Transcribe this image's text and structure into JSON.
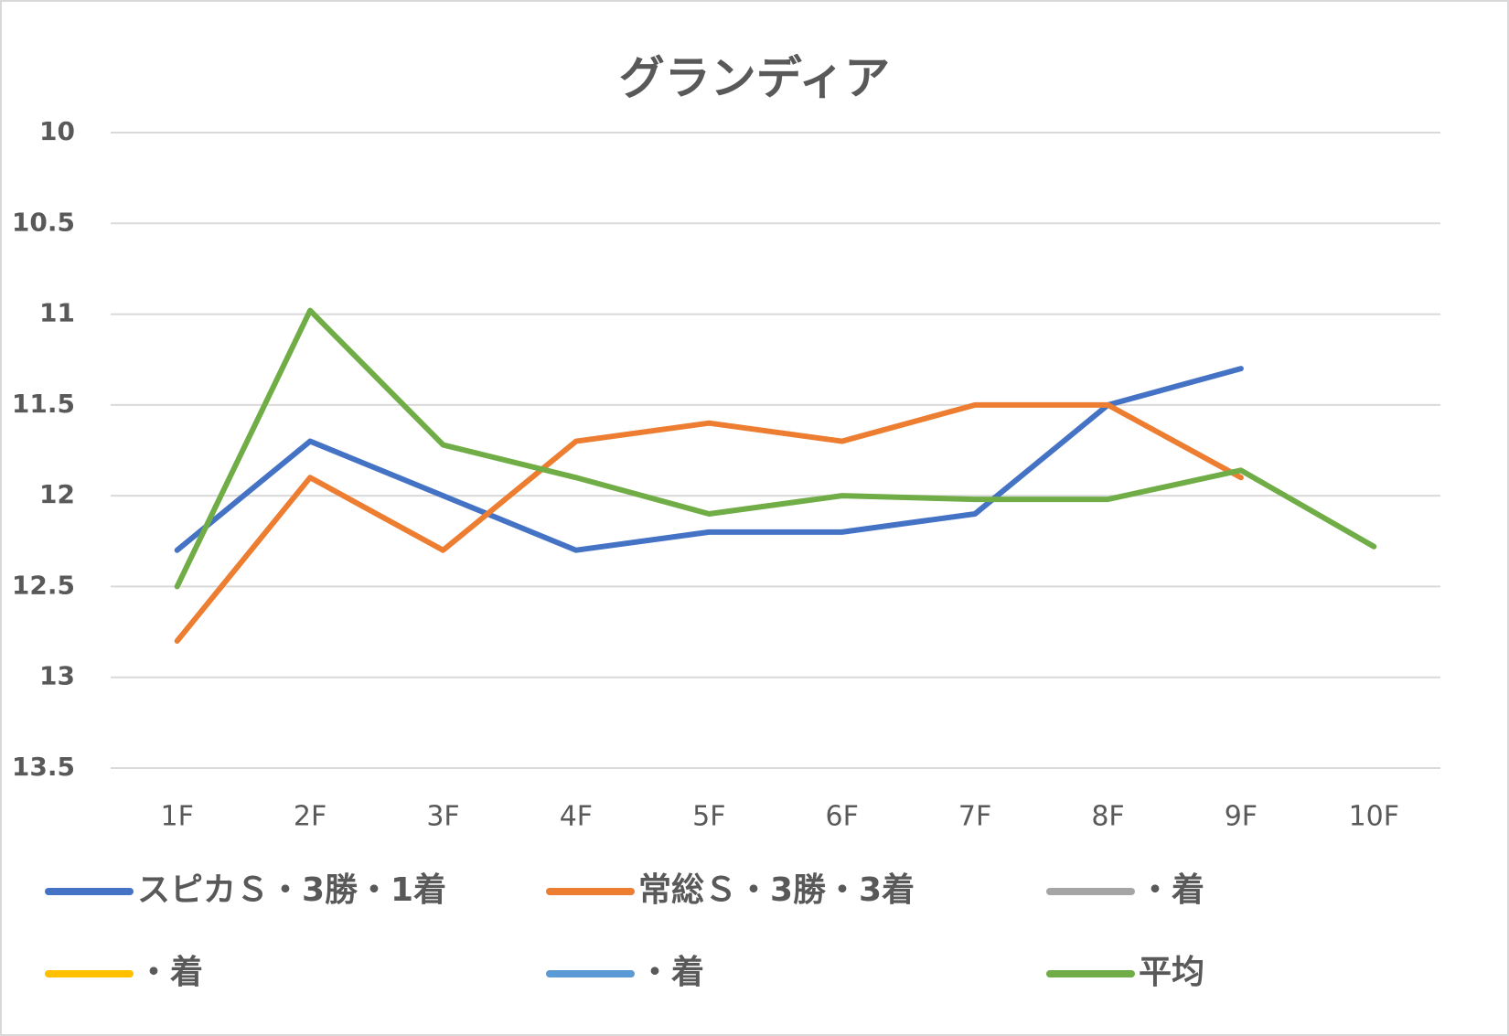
{
  "chart_data": {
    "type": "line",
    "title": "グランディア",
    "categories": [
      "1F",
      "2F",
      "3F",
      "4F",
      "5F",
      "6F",
      "7F",
      "8F",
      "9F",
      "10F"
    ],
    "series": [
      {
        "name": "スピカＳ・3勝・1着",
        "color": "#4472c4",
        "values": [
          12.3,
          11.7,
          12.0,
          12.3,
          12.2,
          12.2,
          12.1,
          11.5,
          11.3,
          null
        ]
      },
      {
        "name": "常総Ｓ・3勝・3着",
        "color": "#ed7d31",
        "values": [
          12.8,
          11.9,
          12.3,
          11.7,
          11.6,
          11.7,
          11.5,
          11.5,
          11.9,
          null
        ]
      },
      {
        "name": "・着",
        "color": "#a5a5a5",
        "values": [
          null,
          null,
          null,
          null,
          null,
          null,
          null,
          null,
          null,
          null
        ]
      },
      {
        "name": "・着",
        "color": "#ffc000",
        "values": [
          null,
          null,
          null,
          null,
          null,
          null,
          null,
          null,
          null,
          null
        ]
      },
      {
        "name": "・着",
        "color": "#5b9bd5",
        "values": [
          null,
          null,
          null,
          null,
          null,
          null,
          null,
          null,
          null,
          null
        ]
      },
      {
        "name": "平均",
        "color": "#70ad47",
        "values": [
          12.5,
          10.98,
          11.72,
          11.9,
          12.1,
          12.0,
          12.02,
          12.02,
          11.86,
          12.28
        ]
      }
    ],
    "ylim": [
      10,
      13.5
    ],
    "yreversed": true,
    "yticks": [
      10,
      10.5,
      11,
      11.5,
      12,
      12.5,
      13,
      13.5
    ],
    "grid": true,
    "legend": "bottom"
  }
}
